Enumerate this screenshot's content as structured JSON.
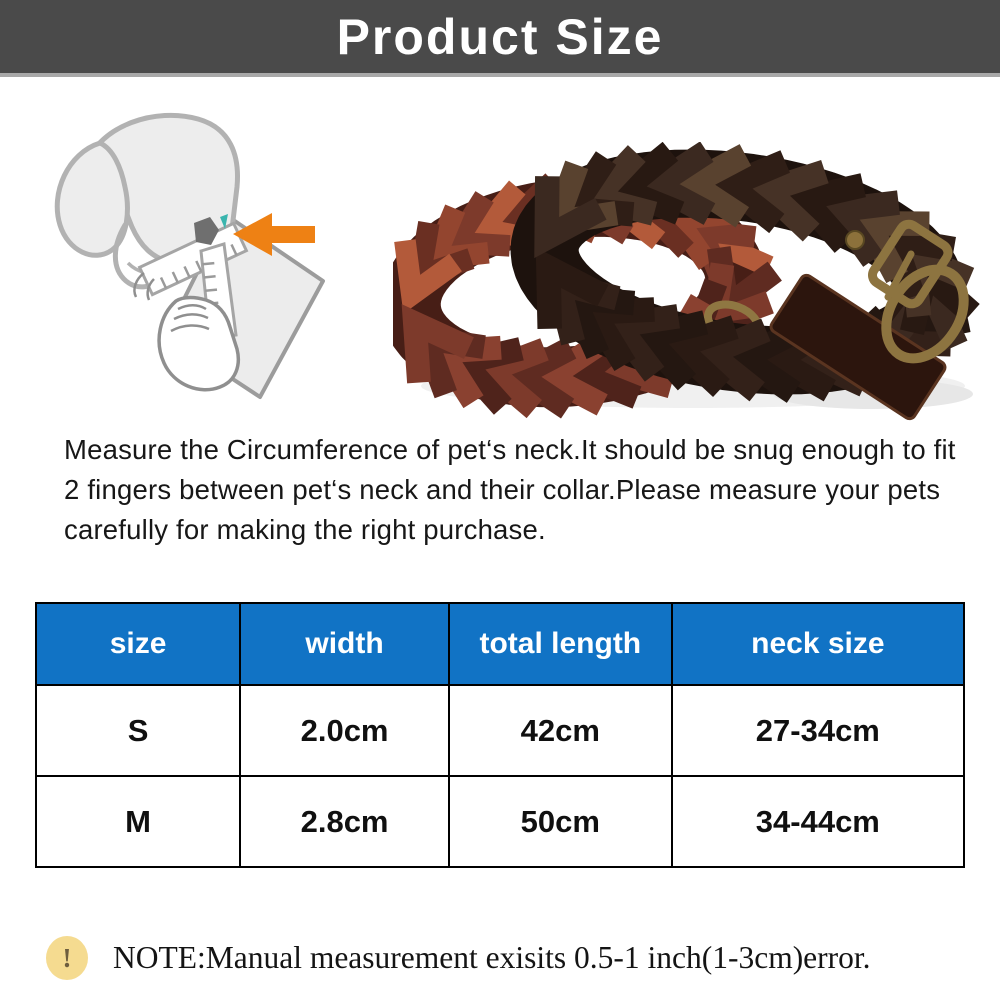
{
  "header": {
    "title": "Product Size",
    "bg_color": "#4a4a4a",
    "text_color": "#ffffff"
  },
  "illustration": {
    "dog_icon": "gray-dog-head-with-tape-measure",
    "arrow_icon": "orange-left-arrow",
    "arrow_color": "#ee8114",
    "collar_photo": "two-braided-leather-dog-collars",
    "collar_left_color": "#5f2b21",
    "collar_right_color": "#2c1b14",
    "buckle_brass_color": "#8d7440"
  },
  "description": {
    "text": "Measure the Circumference of pet‘s neck.It should be snug enough to fit 2 fingers between pet‘s neck and their collar.Please measure your pets carefully for making the right purchase."
  },
  "size_table": {
    "columns": [
      "size",
      "width",
      "total length",
      "neck size"
    ],
    "rows": [
      [
        "S",
        "2.0cm",
        "42cm",
        "27-34cm"
      ],
      [
        "M",
        "2.8cm",
        "50cm",
        "34-44cm"
      ]
    ],
    "header_bg": "#1173c5",
    "header_text_color": "#ffffff"
  },
  "note": {
    "icon_glyph": "!",
    "icon_bg": "#f5db90",
    "text": "NOTE:Manual measurement exisits 0.5-1 inch(1-3cm)error."
  }
}
